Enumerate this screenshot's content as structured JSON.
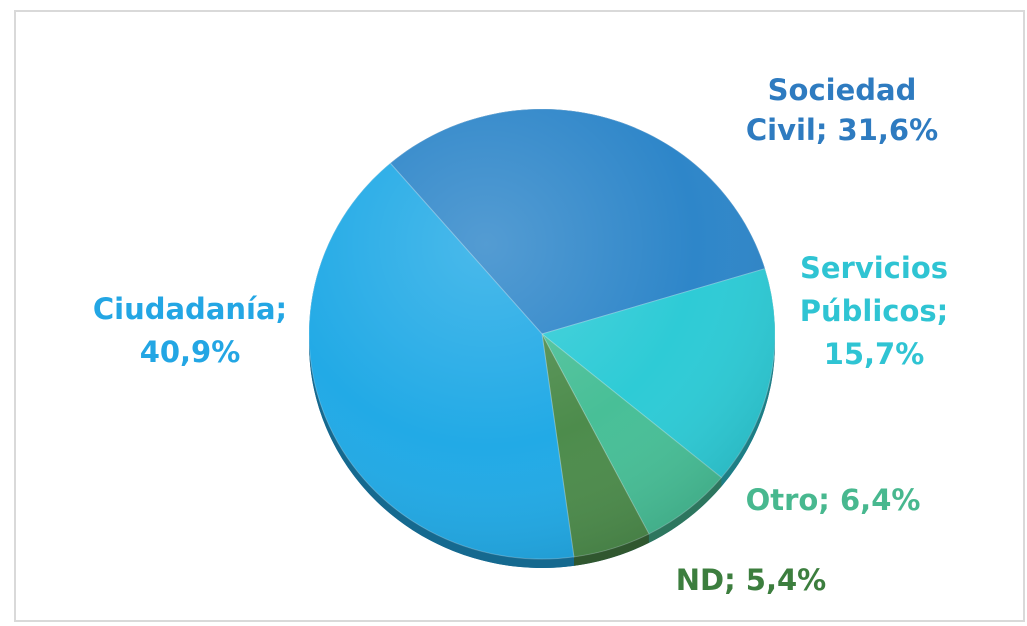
{
  "chart_data": {
    "type": "pie",
    "title": "",
    "slices": [
      {
        "label": "Sociedad Civil; 31,6%",
        "lines": [
          "Sociedad",
          "Civil; 31,6%"
        ],
        "category": "Sociedad Civil",
        "value": 31.6,
        "color": "#2e86c9",
        "label_color": "#2e7bc0"
      },
      {
        "label": "Servicios Públicos; 15,7%",
        "lines": [
          "Servicios",
          "Públicos;",
          "15,7%"
        ],
        "category": "Servicios Públicos",
        "value": 15.7,
        "color": "#2ecbd6",
        "label_color": "#2fc4d3"
      },
      {
        "label": "Otro; 6,4%",
        "lines": [
          "Otro; 6,4%"
        ],
        "category": "Otro",
        "value": 6.4,
        "color": "#48bf97",
        "label_color": "#48b88f"
      },
      {
        "label": "ND; 5,4%",
        "lines": [
          "ND; 5,4%"
        ],
        "category": "ND",
        "value": 5.4,
        "color": "#4d8c4c",
        "label_color": "#3c7e3e"
      },
      {
        "label": "Ciudadanía; 40,9%",
        "lines": [
          "Ciudadanía;",
          "40,9%"
        ],
        "category": "Ciudadanía",
        "value": 40.9,
        "color": "#22aae6",
        "label_color": "#23a6e4"
      }
    ],
    "start_slice": "Sociedad Civil",
    "direction": "clockwise",
    "legend": "none",
    "data_labels": "outside"
  }
}
